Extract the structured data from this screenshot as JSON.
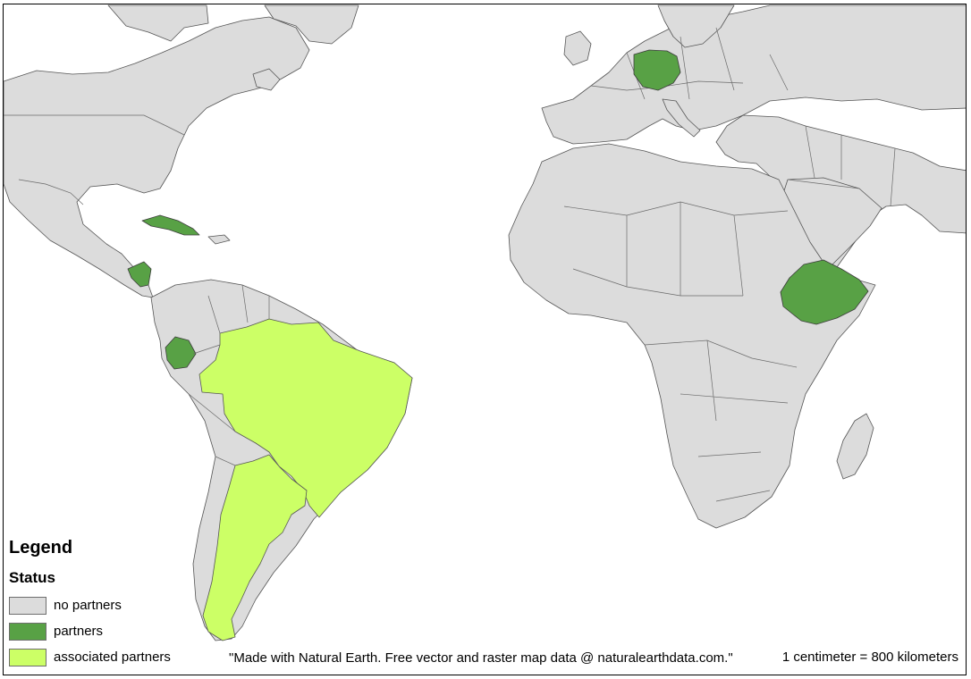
{
  "colors": {
    "no_partners": "#dcdcdc",
    "partners": "#58a145",
    "associated_partners": "#ccff66",
    "border": "#555555",
    "background": "#ffffff"
  },
  "legend": {
    "title": "Legend",
    "subtitle": "Status",
    "items": [
      {
        "label": "no partners",
        "color": "#dcdcdc"
      },
      {
        "label": "partners",
        "color": "#58a145"
      },
      {
        "label": "associated partners",
        "color": "#ccff66"
      }
    ]
  },
  "countries": {
    "partners": [
      "Germany",
      "Cuba",
      "Nicaragua",
      "Ecuador",
      "Ethiopia"
    ],
    "associated_partners": [
      "Brazil",
      "Argentina"
    ]
  },
  "attribution": "\"Made with Natural Earth. Free vector and raster map data @ naturalearthdata.com.\"",
  "scale": "1 centimeter = 800 kilometers"
}
